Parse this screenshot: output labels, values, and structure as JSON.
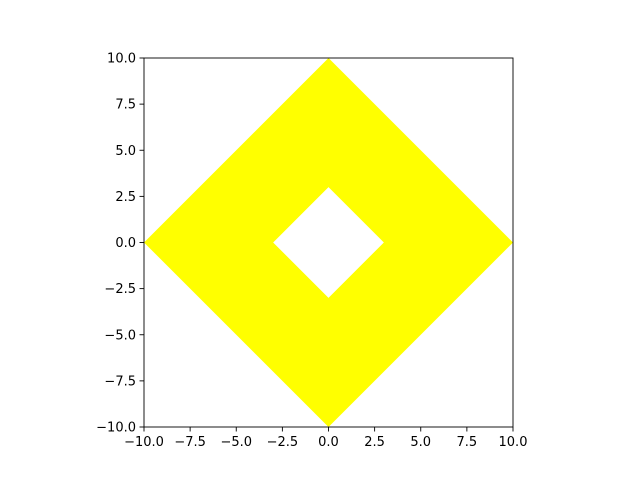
{
  "chart_data": {
    "type": "area",
    "title": "",
    "xlabel": "",
    "ylabel": "",
    "xlim": [
      -10,
      10
    ],
    "ylim": [
      -10,
      10
    ],
    "grid": false,
    "aspect": "equal",
    "x_ticks": [
      -10,
      -7.5,
      -5,
      -2.5,
      0,
      2.5,
      5,
      7.5,
      10
    ],
    "y_ticks": [
      -10,
      -7.5,
      -5,
      -2.5,
      0,
      2.5,
      5,
      7.5,
      10
    ],
    "x_tick_labels": [
      "−10.0",
      "−7.5",
      "−5.0",
      "−2.5",
      "0.0",
      "2.5",
      "5.0",
      "7.5",
      "10.0"
    ],
    "y_tick_labels": [
      "−10.0",
      "−7.5",
      "−5.0",
      "−2.5",
      "0.0",
      "2.5",
      "5.0",
      "7.5",
      "10.0"
    ],
    "shape": {
      "fill_color": "#ffff00",
      "outer_vertices": [
        [
          0,
          10
        ],
        [
          10,
          0
        ],
        [
          0,
          -10
        ],
        [
          -10,
          0
        ]
      ],
      "inner_vertices": [
        [
          0,
          3
        ],
        [
          3,
          0
        ],
        [
          0,
          -3
        ],
        [
          -3,
          0
        ]
      ]
    }
  }
}
